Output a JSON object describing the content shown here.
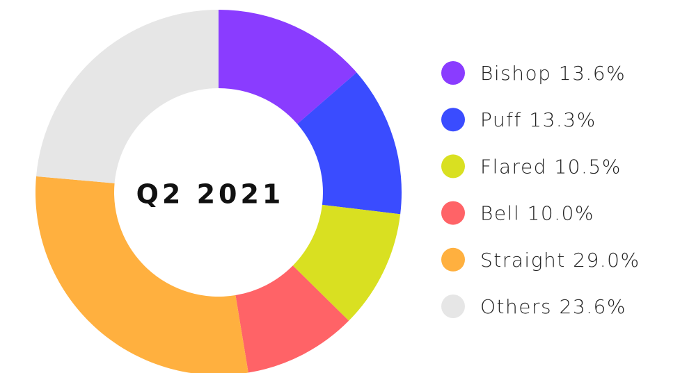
{
  "chart_data": {
    "type": "donut",
    "center_label": "Q2 2021",
    "categories": [
      "Bishop",
      "Puff",
      "Flared",
      "Bell",
      "Straight",
      "Others"
    ],
    "values": [
      13.6,
      13.3,
      10.5,
      10.0,
      29.0,
      23.6
    ],
    "value_labels": [
      "13.6%",
      "13.3%",
      "10.5%",
      "10.0%",
      "29.0%",
      "23.6%"
    ],
    "colors": [
      "#8a3cff",
      "#3a4cff",
      "#d9e021",
      "#ff6367",
      "#ffb03f",
      "#e6e6e6"
    ],
    "legend": "right"
  }
}
